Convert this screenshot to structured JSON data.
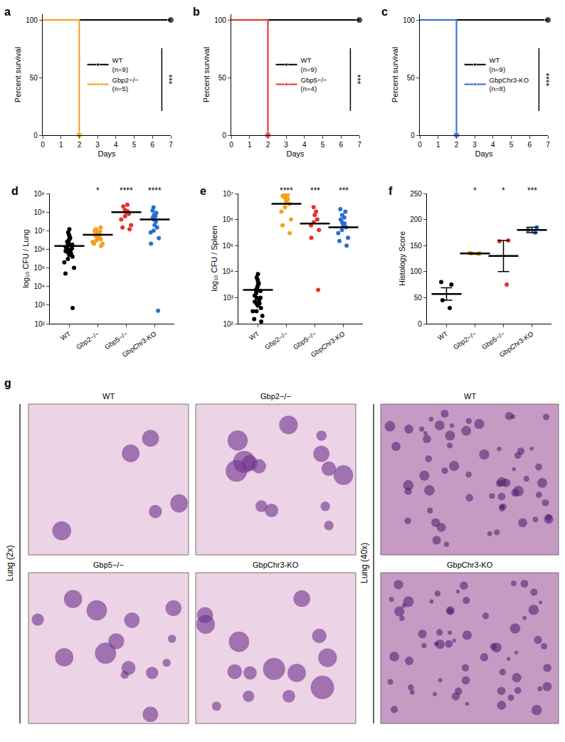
{
  "chart_data": [
    {
      "panel": "a",
      "type": "line",
      "xlabel": "Days",
      "ylabel": "Percent survival",
      "xlim": [
        0,
        7
      ],
      "xticks": [
        0,
        1,
        2,
        3,
        4,
        5,
        6,
        7
      ],
      "ylim": [
        0,
        105
      ],
      "yticks": [
        0,
        50,
        100
      ],
      "line_style": "step",
      "marker": "circle",
      "legend": "right",
      "significance": "***",
      "series": [
        {
          "name": "WT\n(n=9)",
          "color": "#000000",
          "x": [
            0,
            7
          ],
          "values": [
            100,
            100
          ]
        },
        {
          "name": "Gbp2−/−\n(n=5)",
          "color": "#f5a01a",
          "x": [
            0,
            2
          ],
          "values": [
            100,
            0
          ]
        }
      ]
    },
    {
      "panel": "b",
      "type": "line",
      "xlabel": "Days",
      "ylabel": "Percent survival",
      "xlim": [
        0,
        7
      ],
      "xticks": [
        0,
        1,
        2,
        3,
        4,
        5,
        6,
        7
      ],
      "ylim": [
        0,
        105
      ],
      "yticks": [
        0,
        50,
        100
      ],
      "line_style": "step",
      "marker": "circle",
      "legend": "right",
      "significance": "***",
      "series": [
        {
          "name": "WT\n(n=9)",
          "color": "#000000",
          "x": [
            0,
            7
          ],
          "values": [
            100,
            100
          ]
        },
        {
          "name": "Gbp5−/−\n(n=4)",
          "color": "#e8302a",
          "x": [
            0,
            2
          ],
          "values": [
            100,
            0
          ]
        }
      ]
    },
    {
      "panel": "c",
      "type": "line",
      "xlabel": "Days",
      "ylabel": "Percent survival",
      "xlim": [
        0,
        7
      ],
      "xticks": [
        0,
        1,
        2,
        3,
        4,
        5,
        6,
        7
      ],
      "ylim": [
        0,
        105
      ],
      "yticks": [
        0,
        50,
        100
      ],
      "line_style": "step",
      "marker": "circle",
      "legend": "right",
      "significance": "****",
      "series": [
        {
          "name": "WT\n(n=9)",
          "color": "#000000",
          "x": [
            0,
            7
          ],
          "values": [
            100,
            100
          ]
        },
        {
          "name": "GbpChr3-KO\n(n=8)",
          "color": "#2a6ed6",
          "x": [
            0,
            2
          ],
          "values": [
            100,
            0
          ]
        }
      ]
    },
    {
      "panel": "d",
      "type": "scatter",
      "ylabel": "log₁₀ CFU / Lung",
      "log": "y",
      "categories": [
        "WT",
        "Gbp2−/−",
        "Gbp5−/−",
        "GbpChr3-KO"
      ],
      "colors": [
        "#000000",
        "#f5a01a",
        "#e8302a",
        "#2a6ed6"
      ],
      "ylim": [
        100,
        1000000000
      ],
      "yticks": [
        {
          "value": 100,
          "label": "10²"
        },
        {
          "value": 1000,
          "label": "10³"
        },
        {
          "value": 10000,
          "label": "10⁴"
        },
        {
          "value": 100000,
          "label": "10⁵"
        },
        {
          "value": 1000000,
          "label": "10⁶"
        },
        {
          "value": 10000000,
          "label": "10⁷"
        },
        {
          "value": 100000000,
          "label": "10⁸"
        },
        {
          "value": 1000000000,
          "label": "10⁹"
        }
      ],
      "points": [
        [
          700,
          50000,
          100000,
          200000,
          300000,
          400000,
          500000,
          600000,
          700000,
          800000,
          900000,
          1000000,
          1100000,
          1300000,
          1500000,
          1800000,
          2000000,
          2500000,
          3000000,
          3500000,
          4000000,
          5000000,
          6000000,
          8000000,
          12000000
        ],
        [
          1500000,
          2000000,
          2500000,
          3000000,
          3500000,
          4000000,
          4500000,
          5000000,
          6000000,
          7000000,
          8000000,
          9000000,
          10000000,
          12000000,
          15000000,
          2000000
        ],
        [
          12000000,
          15000000,
          20000000,
          40000000,
          60000000,
          80000000,
          100000000,
          110000000,
          130000000,
          200000000,
          250000000
        ],
        [
          500,
          2000000,
          4000000,
          8000000,
          10000000,
          15000000,
          20000000,
          30000000,
          40000000,
          50000000,
          60000000,
          70000000,
          90000000,
          120000000,
          180000000
        ]
      ],
      "means": [
        1500000,
        6000000,
        100000000,
        40000000
      ],
      "significance": [
        null,
        "*",
        "****",
        "****"
      ]
    },
    {
      "panel": "e",
      "type": "scatter",
      "ylabel": "log₁₀ CFU / Spleen",
      "log": "y",
      "categories": [
        "WT",
        "Gbp2−/−",
        "Gbp5−/−",
        "GbpChr3-KO"
      ],
      "colors": [
        "#000000",
        "#f5a01a",
        "#e8302a",
        "#2a6ed6"
      ],
      "ylim": [
        100,
        10000000
      ],
      "yticks": [
        {
          "value": 100,
          "label": "10²"
        },
        {
          "value": 1000,
          "label": "10³"
        },
        {
          "value": 10000,
          "label": "10⁴"
        },
        {
          "value": 100000,
          "label": "10⁵"
        },
        {
          "value": 1000000,
          "label": "10⁶"
        },
        {
          "value": 10000000,
          "label": "10⁷"
        }
      ],
      "points": [
        [
          120,
          150,
          200,
          300,
          300,
          400,
          500,
          600,
          700,
          800,
          1000,
          1200,
          1500,
          1800,
          2000,
          2500,
          3000,
          3500,
          4000,
          5000,
          6000,
          8000,
          1000,
          2000,
          600
        ],
        [
          300000,
          600000,
          1000000,
          2000000,
          3000000,
          4000000,
          5000000,
          6000000,
          7000000,
          8000000,
          9000000,
          10000000,
          12000000
        ],
        [
          2000,
          200000,
          400000,
          600000,
          800000,
          1000000,
          1500000,
          2000000,
          3000000
        ],
        [
          100000,
          150000,
          200000,
          300000,
          400000,
          500000,
          600000,
          700000,
          800000,
          1000000,
          1200000,
          1500000,
          2000000,
          2500000
        ]
      ],
      "means": [
        2000,
        4000000,
        700000,
        500000
      ],
      "significance": [
        null,
        "****",
        "***",
        "***"
      ]
    },
    {
      "panel": "f",
      "type": "scatter",
      "ylabel": "Histology Score",
      "categories": [
        "WT",
        "Gbp2−/−",
        "Gbp5−/−",
        "GbpChr3-KO"
      ],
      "colors": [
        "#000000",
        "#f5a01a",
        "#e8302a",
        "#2a6ed6"
      ],
      "ylim": [
        0,
        250
      ],
      "yticks": [
        0,
        50,
        100,
        150,
        200,
        250
      ],
      "points": [
        [
          80,
          75,
          45,
          30
        ],
        [
          135,
          135,
          136,
          134
        ],
        [
          160,
          158,
          75
        ],
        [
          175,
          180,
          185
        ]
      ],
      "means": [
        57,
        135,
        130,
        180
      ],
      "sem": [
        12,
        1,
        30,
        5
      ],
      "significance": [
        null,
        "*",
        "*",
        "***"
      ]
    }
  ],
  "histology": {
    "panel": "g",
    "left": {
      "label": "Lung (2x)",
      "images": [
        "WT",
        "Gbp2−/−",
        "Gbp5−/−",
        "GbpChr3-KO"
      ]
    },
    "right": {
      "label": "Lung (40x)",
      "images": [
        "WT",
        "GbpChr3-KO"
      ]
    }
  }
}
